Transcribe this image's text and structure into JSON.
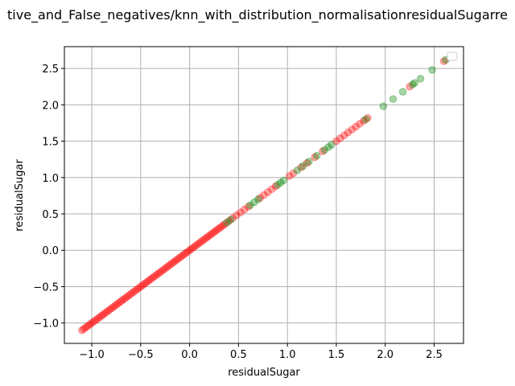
{
  "chart_data": {
    "type": "scatter",
    "title": "tive_and_False_negatives/knn_with_distribution_normalisationresidualSugarre",
    "xlabel": "residualSugar",
    "ylabel": "residualSugar",
    "xlim": [
      -1.28,
      2.8
    ],
    "ylim": [
      -1.28,
      2.8
    ],
    "xticks": [
      -1.0,
      -0.5,
      0.0,
      0.5,
      1.0,
      1.5,
      2.0,
      2.5
    ],
    "yticks": [
      -1.0,
      -0.5,
      0.0,
      0.5,
      1.0,
      1.5,
      2.0,
      2.5
    ],
    "xtick_labels": [
      "−1.0",
      "−0.5",
      "0.0",
      "0.5",
      "1.0",
      "1.5",
      "2.0",
      "2.5"
    ],
    "ytick_labels": [
      "−1.0",
      "−0.5",
      "0.0",
      "0.5",
      "1.0",
      "1.5",
      "2.0",
      "2.5"
    ],
    "grid": true,
    "legend": "top-right (empty)",
    "colors": {
      "red_series": "#ff0000",
      "green_series": "#008000"
    },
    "series": [
      {
        "color": "#ff0000",
        "alpha": 0.35,
        "x": [
          -1.1,
          -1.08,
          -1.06,
          -1.04,
          -1.02,
          -1.0,
          -0.98,
          -0.96,
          -0.94,
          -0.92,
          -0.9,
          -0.88,
          -0.86,
          -0.84,
          -0.82,
          -0.8,
          -0.78,
          -0.76,
          -0.74,
          -0.72,
          -0.7,
          -0.68,
          -0.66,
          -0.64,
          -0.62,
          -0.6,
          -0.58,
          -0.56,
          -0.54,
          -0.52,
          -0.5,
          -0.48,
          -0.46,
          -0.44,
          -0.42,
          -0.4,
          -0.38,
          -0.36,
          -0.34,
          -0.32,
          -0.3,
          -0.28,
          -0.26,
          -0.24,
          -0.22,
          -0.2,
          -0.18,
          -0.16,
          -0.14,
          -0.12,
          -0.1,
          -0.08,
          -0.06,
          -0.04,
          -0.02,
          0.0,
          0.02,
          0.04,
          0.06,
          0.08,
          0.1,
          0.12,
          0.14,
          0.16,
          0.18,
          0.2,
          0.22,
          0.24,
          0.26,
          0.28,
          0.3,
          0.32,
          0.34,
          0.36,
          0.4,
          0.44,
          0.48,
          0.52,
          0.56,
          0.6,
          0.72,
          0.76,
          0.8,
          0.84,
          0.88,
          1.02,
          1.06,
          1.14,
          1.2,
          1.28,
          1.36,
          1.5,
          1.54,
          1.58,
          1.62,
          1.66,
          1.7,
          1.74,
          1.78,
          1.82,
          2.25,
          2.6
        ],
        "y": [
          -1.1,
          -1.08,
          -1.06,
          -1.04,
          -1.02,
          -1.0,
          -0.98,
          -0.96,
          -0.94,
          -0.92,
          -0.9,
          -0.88,
          -0.86,
          -0.84,
          -0.82,
          -0.8,
          -0.78,
          -0.76,
          -0.74,
          -0.72,
          -0.7,
          -0.68,
          -0.66,
          -0.64,
          -0.62,
          -0.6,
          -0.58,
          -0.56,
          -0.54,
          -0.52,
          -0.5,
          -0.48,
          -0.46,
          -0.44,
          -0.42,
          -0.4,
          -0.38,
          -0.36,
          -0.34,
          -0.32,
          -0.3,
          -0.28,
          -0.26,
          -0.24,
          -0.22,
          -0.2,
          -0.18,
          -0.16,
          -0.14,
          -0.12,
          -0.1,
          -0.08,
          -0.06,
          -0.04,
          -0.02,
          0.0,
          0.02,
          0.04,
          0.06,
          0.08,
          0.1,
          0.12,
          0.14,
          0.16,
          0.18,
          0.2,
          0.22,
          0.24,
          0.26,
          0.28,
          0.3,
          0.32,
          0.34,
          0.36,
          0.4,
          0.44,
          0.48,
          0.52,
          0.56,
          0.6,
          0.72,
          0.76,
          0.8,
          0.84,
          0.88,
          1.02,
          1.06,
          1.14,
          1.2,
          1.28,
          1.36,
          1.5,
          1.54,
          1.58,
          1.62,
          1.66,
          1.7,
          1.74,
          1.78,
          1.82,
          2.25,
          2.6
        ]
      },
      {
        "color": "#008000",
        "alpha": 0.35,
        "x": [
          0.38,
          0.42,
          0.62,
          0.66,
          0.7,
          0.9,
          0.93,
          0.96,
          1.1,
          1.16,
          1.22,
          1.3,
          1.38,
          1.42,
          1.45,
          1.8,
          1.98,
          2.08,
          2.18,
          2.28,
          2.3,
          2.36,
          2.48,
          2.62
        ],
        "y": [
          0.38,
          0.42,
          0.62,
          0.66,
          0.7,
          0.9,
          0.93,
          0.96,
          1.1,
          1.16,
          1.22,
          1.3,
          1.38,
          1.42,
          1.45,
          1.8,
          1.98,
          2.08,
          2.18,
          2.28,
          2.3,
          2.36,
          2.48,
          2.62
        ]
      }
    ]
  }
}
